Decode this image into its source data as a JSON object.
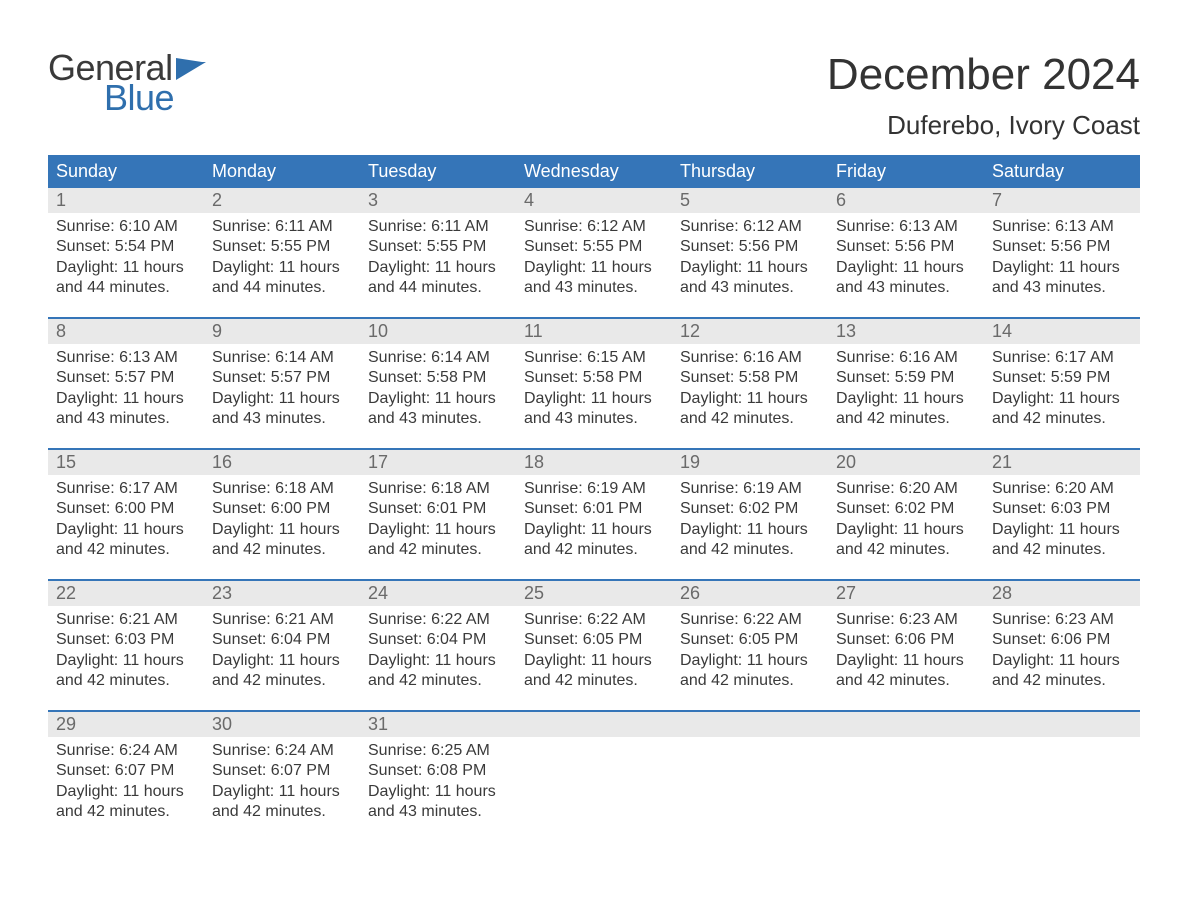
{
  "brand": {
    "word1": "General",
    "word2": "Blue",
    "word1_color": "#3a3a3a",
    "word2_color": "#2f6fad"
  },
  "title": "December 2024",
  "location": "Duferebo, Ivory Coast",
  "header_bg": "#3575b8",
  "header_fg": "#ffffff",
  "daynum_bg": "#e9e9e9",
  "week_border": "#3575b8",
  "text_color": "#3a3a3a",
  "columns": [
    "Sunday",
    "Monday",
    "Tuesday",
    "Wednesday",
    "Thursday",
    "Friday",
    "Saturday"
  ],
  "weeks": [
    [
      {
        "n": "1",
        "sr": "6:10 AM",
        "ss": "5:54 PM",
        "dl": "11 hours and 44 minutes."
      },
      {
        "n": "2",
        "sr": "6:11 AM",
        "ss": "5:55 PM",
        "dl": "11 hours and 44 minutes."
      },
      {
        "n": "3",
        "sr": "6:11 AM",
        "ss": "5:55 PM",
        "dl": "11 hours and 44 minutes."
      },
      {
        "n": "4",
        "sr": "6:12 AM",
        "ss": "5:55 PM",
        "dl": "11 hours and 43 minutes."
      },
      {
        "n": "5",
        "sr": "6:12 AM",
        "ss": "5:56 PM",
        "dl": "11 hours and 43 minutes."
      },
      {
        "n": "6",
        "sr": "6:13 AM",
        "ss": "5:56 PM",
        "dl": "11 hours and 43 minutes."
      },
      {
        "n": "7",
        "sr": "6:13 AM",
        "ss": "5:56 PM",
        "dl": "11 hours and 43 minutes."
      }
    ],
    [
      {
        "n": "8",
        "sr": "6:13 AM",
        "ss": "5:57 PM",
        "dl": "11 hours and 43 minutes."
      },
      {
        "n": "9",
        "sr": "6:14 AM",
        "ss": "5:57 PM",
        "dl": "11 hours and 43 minutes."
      },
      {
        "n": "10",
        "sr": "6:14 AM",
        "ss": "5:58 PM",
        "dl": "11 hours and 43 minutes."
      },
      {
        "n": "11",
        "sr": "6:15 AM",
        "ss": "5:58 PM",
        "dl": "11 hours and 43 minutes."
      },
      {
        "n": "12",
        "sr": "6:16 AM",
        "ss": "5:58 PM",
        "dl": "11 hours and 42 minutes."
      },
      {
        "n": "13",
        "sr": "6:16 AM",
        "ss": "5:59 PM",
        "dl": "11 hours and 42 minutes."
      },
      {
        "n": "14",
        "sr": "6:17 AM",
        "ss": "5:59 PM",
        "dl": "11 hours and 42 minutes."
      }
    ],
    [
      {
        "n": "15",
        "sr": "6:17 AM",
        "ss": "6:00 PM",
        "dl": "11 hours and 42 minutes."
      },
      {
        "n": "16",
        "sr": "6:18 AM",
        "ss": "6:00 PM",
        "dl": "11 hours and 42 minutes."
      },
      {
        "n": "17",
        "sr": "6:18 AM",
        "ss": "6:01 PM",
        "dl": "11 hours and 42 minutes."
      },
      {
        "n": "18",
        "sr": "6:19 AM",
        "ss": "6:01 PM",
        "dl": "11 hours and 42 minutes."
      },
      {
        "n": "19",
        "sr": "6:19 AM",
        "ss": "6:02 PM",
        "dl": "11 hours and 42 minutes."
      },
      {
        "n": "20",
        "sr": "6:20 AM",
        "ss": "6:02 PM",
        "dl": "11 hours and 42 minutes."
      },
      {
        "n": "21",
        "sr": "6:20 AM",
        "ss": "6:03 PM",
        "dl": "11 hours and 42 minutes."
      }
    ],
    [
      {
        "n": "22",
        "sr": "6:21 AM",
        "ss": "6:03 PM",
        "dl": "11 hours and 42 minutes."
      },
      {
        "n": "23",
        "sr": "6:21 AM",
        "ss": "6:04 PM",
        "dl": "11 hours and 42 minutes."
      },
      {
        "n": "24",
        "sr": "6:22 AM",
        "ss": "6:04 PM",
        "dl": "11 hours and 42 minutes."
      },
      {
        "n": "25",
        "sr": "6:22 AM",
        "ss": "6:05 PM",
        "dl": "11 hours and 42 minutes."
      },
      {
        "n": "26",
        "sr": "6:22 AM",
        "ss": "6:05 PM",
        "dl": "11 hours and 42 minutes."
      },
      {
        "n": "27",
        "sr": "6:23 AM",
        "ss": "6:06 PM",
        "dl": "11 hours and 42 minutes."
      },
      {
        "n": "28",
        "sr": "6:23 AM",
        "ss": "6:06 PM",
        "dl": "11 hours and 42 minutes."
      }
    ],
    [
      {
        "n": "29",
        "sr": "6:24 AM",
        "ss": "6:07 PM",
        "dl": "11 hours and 42 minutes."
      },
      {
        "n": "30",
        "sr": "6:24 AM",
        "ss": "6:07 PM",
        "dl": "11 hours and 42 minutes."
      },
      {
        "n": "31",
        "sr": "6:25 AM",
        "ss": "6:08 PM",
        "dl": "11 hours and 43 minutes."
      },
      null,
      null,
      null,
      null
    ]
  ],
  "labels": {
    "sunrise": "Sunrise: ",
    "sunset": "Sunset: ",
    "daylight": "Daylight: "
  }
}
